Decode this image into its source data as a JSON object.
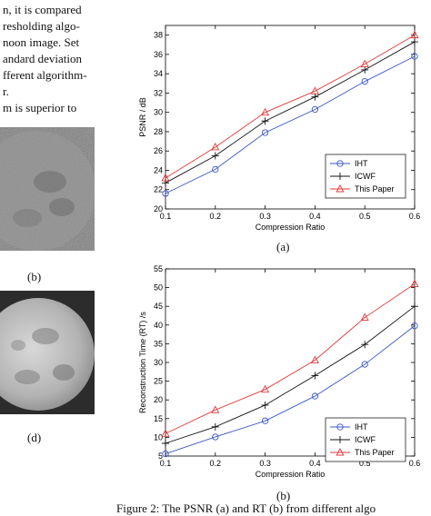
{
  "left_text": {
    "lines": [
      "n, it is compared",
      "resholding algo-",
      "noon image. Set",
      "andard deviation",
      "fferent algorithm-",
      "r.",
      "m is superior to"
    ]
  },
  "left_figures": {
    "b_label": "(b)",
    "d_label": "(d)"
  },
  "charts": [
    {
      "label": "(a)",
      "chart_data": {
        "type": "line",
        "xlabel": "Compression Ratio",
        "ylabel": "PSNR / dB",
        "x": [
          0.1,
          0.2,
          0.3,
          0.4,
          0.5,
          0.6
        ],
        "xlim": [
          0.1,
          0.6
        ],
        "ylim": [
          20,
          39
        ],
        "xticks": [
          "0.1",
          "0.2",
          "0.3",
          "0.4",
          "0.5",
          "0.6"
        ],
        "yticks": [
          "20",
          "22",
          "24",
          "26",
          "28",
          "30",
          "32",
          "34",
          "36",
          "38"
        ],
        "legend_position": "bottom-right",
        "series": [
          {
            "name": "IHT",
            "marker": "circle",
            "color": "#3a56c9",
            "values": [
              21.6,
              24.1,
              27.9,
              30.3,
              33.2,
              35.8
            ]
          },
          {
            "name": "ICWF",
            "marker": "plus",
            "color": "#111111",
            "values": [
              22.7,
              25.5,
              29.1,
              31.6,
              34.4,
              37.3
            ]
          },
          {
            "name": "This Paper",
            "marker": "triangle",
            "color": "#e03a3a",
            "values": [
              23.2,
              26.4,
              30.0,
              32.2,
              35.0,
              38.0
            ]
          }
        ]
      }
    },
    {
      "label": "(b)",
      "chart_data": {
        "type": "line",
        "xlabel": "Compression Ratio",
        "ylabel": "Reconstruction Time (RT) /s",
        "x": [
          0.1,
          0.2,
          0.3,
          0.4,
          0.5,
          0.6
        ],
        "xlim": [
          0.1,
          0.6
        ],
        "ylim": [
          5,
          55
        ],
        "xticks": [
          "0.1",
          "0.2",
          "0.3",
          "0.4",
          "0.5",
          "0.6"
        ],
        "yticks": [
          "5",
          "10",
          "15",
          "20",
          "25",
          "30",
          "35",
          "40",
          "45",
          "50",
          "55"
        ],
        "legend_position": "bottom-right",
        "series": [
          {
            "name": "IHT",
            "marker": "circle",
            "color": "#3a56c9",
            "values": [
              5.6,
              10.1,
              14.4,
              21.0,
              29.5,
              39.8
            ]
          },
          {
            "name": "ICWF",
            "marker": "plus",
            "color": "#111111",
            "values": [
              8.4,
              12.8,
              18.6,
              26.5,
              34.8,
              45.0
            ]
          },
          {
            "name": "This Paper",
            "marker": "triangle",
            "color": "#e03a3a",
            "values": [
              11.0,
              17.3,
              22.8,
              30.6,
              42.0,
              51.0
            ]
          }
        ]
      }
    }
  ],
  "figure_caption": "Figure 2: The PSNR (a) and RT (b) from different algo"
}
